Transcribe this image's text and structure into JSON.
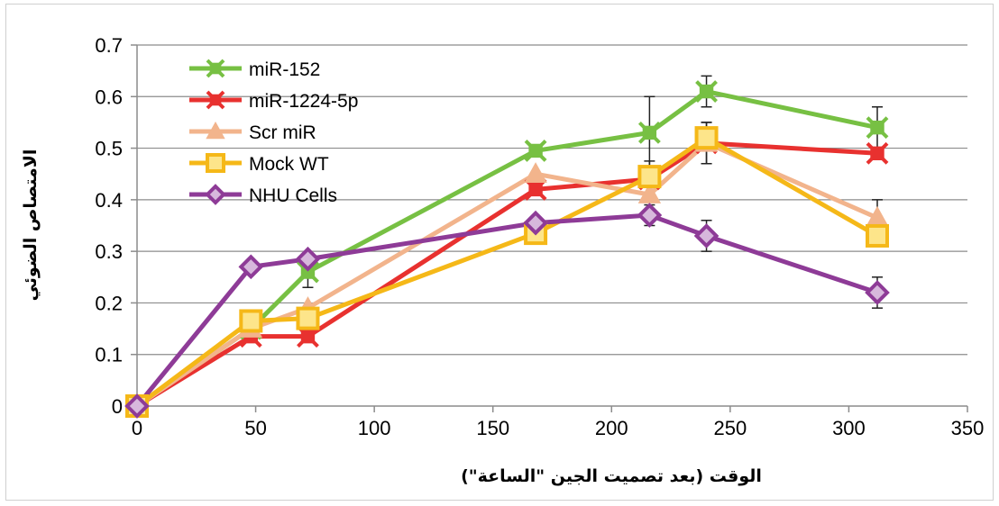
{
  "chart_data": {
    "type": "line",
    "xlabel": "الوقت (بعد تصميت الجين \"الساعة\")",
    "ylabel": "الامتصاص الضوئي",
    "xlim": [
      0,
      350
    ],
    "ylim": [
      0,
      0.7
    ],
    "xticks": [
      "0",
      "50",
      "100",
      "150",
      "200",
      "250",
      "300",
      "350"
    ],
    "yticks": [
      "0",
      "0.1",
      "0.2",
      "0.3",
      "0.4",
      "0.5",
      "0.6",
      "0.7"
    ],
    "grid": "horizontal",
    "legend_position": "top-left",
    "series": [
      {
        "name": "miR-152",
        "color": "#77c043",
        "marker": "x-square",
        "x": [
          0,
          48,
          72,
          168,
          216,
          240,
          312
        ],
        "y": [
          0,
          0.15,
          0.26,
          0.495,
          0.53,
          0.61,
          0.54
        ],
        "err": [
          0,
          0,
          0.03,
          0,
          0.07,
          0.03,
          0.04
        ]
      },
      {
        "name": "miR-1224-5p",
        "color": "#e8312f",
        "marker": "x-square",
        "x": [
          0,
          48,
          72,
          168,
          216,
          240,
          312
        ],
        "y": [
          0,
          0.135,
          0.135,
          0.42,
          0.44,
          0.51,
          0.49
        ],
        "err": [
          0,
          0,
          0,
          0,
          0,
          0.04,
          0
        ]
      },
      {
        "name": "Scr miR",
        "color": "#f2b48c",
        "marker": "triangle",
        "x": [
          0,
          48,
          72,
          168,
          216,
          240,
          312
        ],
        "y": [
          0,
          0.15,
          0.19,
          0.45,
          0.41,
          0.51,
          0.365
        ],
        "err": [
          0,
          0,
          0,
          0,
          0,
          0.04,
          0.035
        ]
      },
      {
        "name": "Mock WT",
        "color": "#f5b818",
        "marker": "square",
        "x": [
          0,
          48,
          72,
          168,
          216,
          240,
          312
        ],
        "y": [
          0,
          0.165,
          0.17,
          0.335,
          0.445,
          0.52,
          0.33
        ],
        "err": [
          0,
          0.02,
          0,
          0,
          0.03,
          0,
          0
        ]
      },
      {
        "name": "NHU Cells",
        "color": "#8e3b97",
        "marker": "diamond",
        "x": [
          0,
          48,
          72,
          168,
          216,
          240,
          312
        ],
        "y": [
          0,
          0.27,
          0.285,
          0.355,
          0.37,
          0.33,
          0.22
        ],
        "err": [
          0,
          0,
          0,
          0,
          0.02,
          0.03,
          0.03
        ]
      }
    ]
  }
}
